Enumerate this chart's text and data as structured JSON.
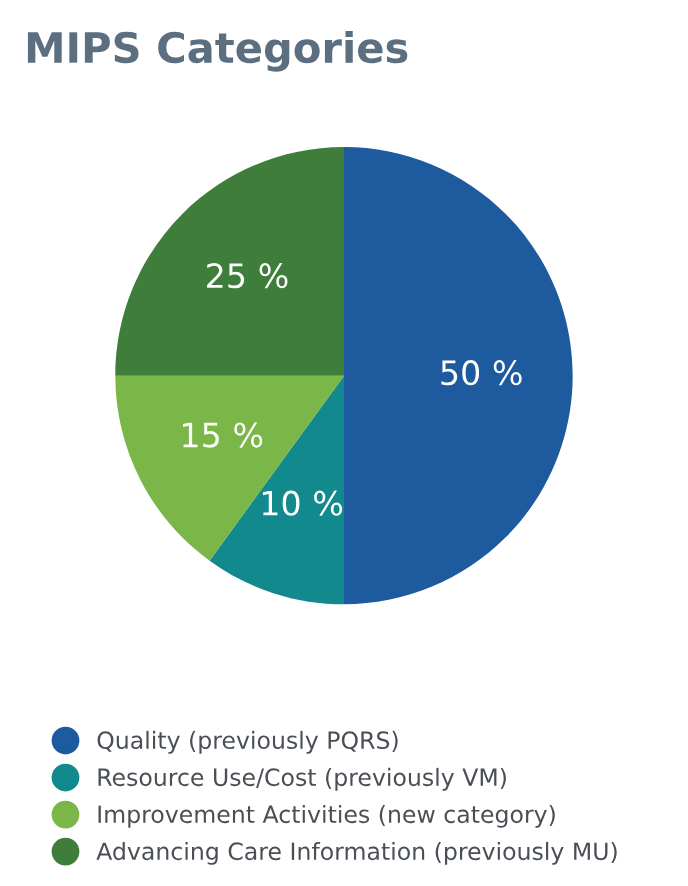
{
  "chart_data": {
    "type": "pie",
    "title": "MIPS Categories",
    "categories": [
      "Quality (previously PQRS)",
      "Resource Use/Cost (previously VM)",
      "Improvement Activities (new category)",
      "Advancing Care Information (previously MU)"
    ],
    "values": [
      50,
      10,
      15,
      25
    ],
    "value_labels": [
      "50 %",
      "10 %",
      "15 %",
      "25 %"
    ],
    "colors": [
      "#1d5a9e",
      "#12898c",
      "#7ab648",
      "#3f7d3b"
    ],
    "legend": "bottom"
  }
}
